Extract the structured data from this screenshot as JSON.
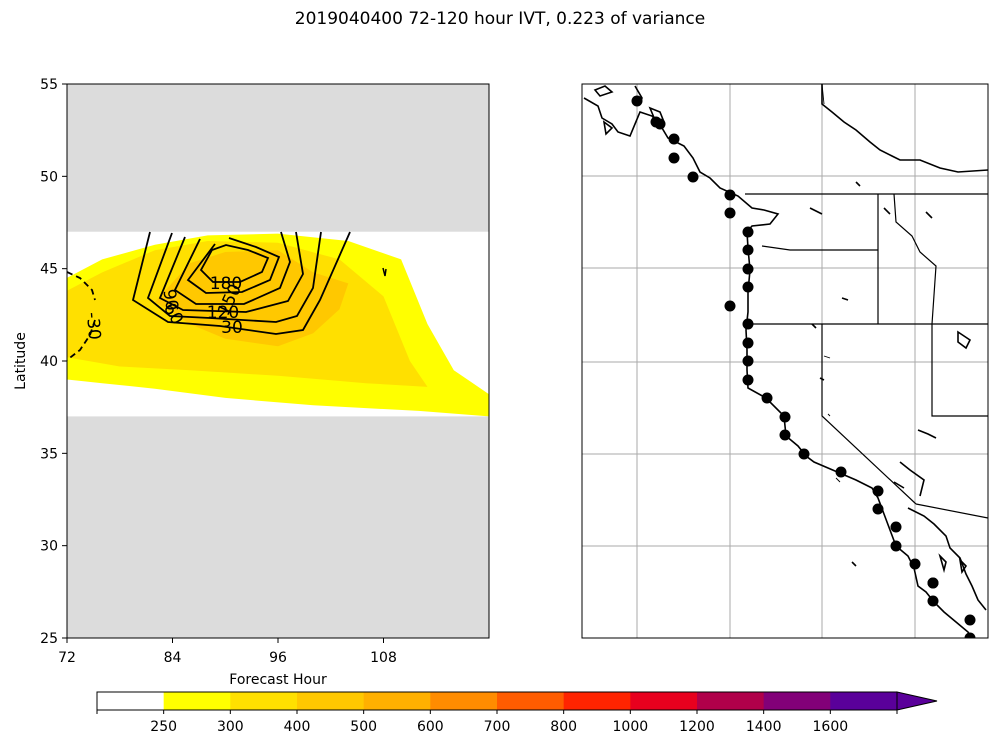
{
  "figure": {
    "title": "2019040400 72-120 hour IVT, 0.223 of variance"
  },
  "chart_data": [
    {
      "type": "contour",
      "xlabel": "Forecast Hour",
      "ylabel": "Latitude",
      "xlim": [
        72,
        120
      ],
      "ylim": [
        25,
        55
      ],
      "xticks": [
        72,
        84,
        96,
        108
      ],
      "yticks": [
        25,
        30,
        35,
        40,
        45,
        50,
        55
      ],
      "masked_regions": [
        {
          "lat_from": 47,
          "lat_to": 55,
          "color": "#dcdcdc"
        },
        {
          "lat_from": 25,
          "lat_to": 37,
          "color": "#dcdcdc"
        }
      ],
      "filled_levels": [
        {
          "min": 250,
          "max": 300,
          "color": "#ffff00",
          "polygon": [
            [
              72,
              44.5
            ],
            [
              76,
              45.5
            ],
            [
              82,
              46.3
            ],
            [
              88,
              46.8
            ],
            [
              96,
              46.9
            ],
            [
              104,
              46.5
            ],
            [
              110,
              45.5
            ],
            [
              113,
              42
            ],
            [
              116,
              39.5
            ],
            [
              120,
              38.2
            ],
            [
              120,
              37
            ],
            [
              112,
              37.3
            ],
            [
              100,
              37.6
            ],
            [
              90,
              38
            ],
            [
              82,
              38.5
            ],
            [
              76,
              38.8
            ],
            [
              72,
              39
            ]
          ]
        },
        {
          "min": 300,
          "max": 400,
          "color": "#ffe000",
          "polygon": [
            [
              72,
              43.8
            ],
            [
              76,
              44.8
            ],
            [
              82,
              46.0
            ],
            [
              88,
              46.5
            ],
            [
              96,
              46.4
            ],
            [
              103,
              45.5
            ],
            [
              108,
              43.5
            ],
            [
              111,
              40
            ],
            [
              113,
              38.6
            ],
            [
              106,
              38.8
            ],
            [
              96,
              39.2
            ],
            [
              86,
              39.5
            ],
            [
              78,
              39.7
            ],
            [
              72,
              40.2
            ]
          ]
        },
        {
          "min": 400,
          "max": 500,
          "color": "#ffc800",
          "polygon": [
            [
              82,
              43.2
            ],
            [
              86,
              45.3
            ],
            [
              90,
              45.9
            ],
            [
              96,
              46
            ],
            [
              100,
              44.8
            ],
            [
              104,
              44.2
            ],
            [
              103,
              42.8
            ],
            [
              100,
              41.5
            ],
            [
              96,
              40.8
            ],
            [
              90,
              41.2
            ],
            [
              86,
              42
            ]
          ]
        }
      ],
      "contour_levels": [
        30,
        60,
        90,
        120,
        150,
        180
      ],
      "contour_labels": [
        "-30",
        "30",
        "60",
        "90",
        "120",
        "150",
        "180"
      ],
      "negative_contour_label": "-30"
    },
    {
      "type": "map",
      "region": "US West Coast",
      "gridlines": true,
      "station_markers": 32
    }
  ],
  "colorbar": {
    "levels": [
      0,
      250,
      300,
      400,
      500,
      600,
      700,
      800,
      1000,
      1200,
      1400,
      1600
    ],
    "tick_labels": [
      "250",
      "300",
      "400",
      "500",
      "600",
      "700",
      "800",
      "1000",
      "1200",
      "1400",
      "1600"
    ],
    "colors": [
      "#ffffff",
      "#ffff00",
      "#ffe000",
      "#ffc800",
      "#ffb000",
      "#ff8c00",
      "#ff5c00",
      "#ff2400",
      "#e8001e",
      "#b0004a",
      "#820078",
      "#5a009a"
    ],
    "extend_color": "#5a009a"
  }
}
